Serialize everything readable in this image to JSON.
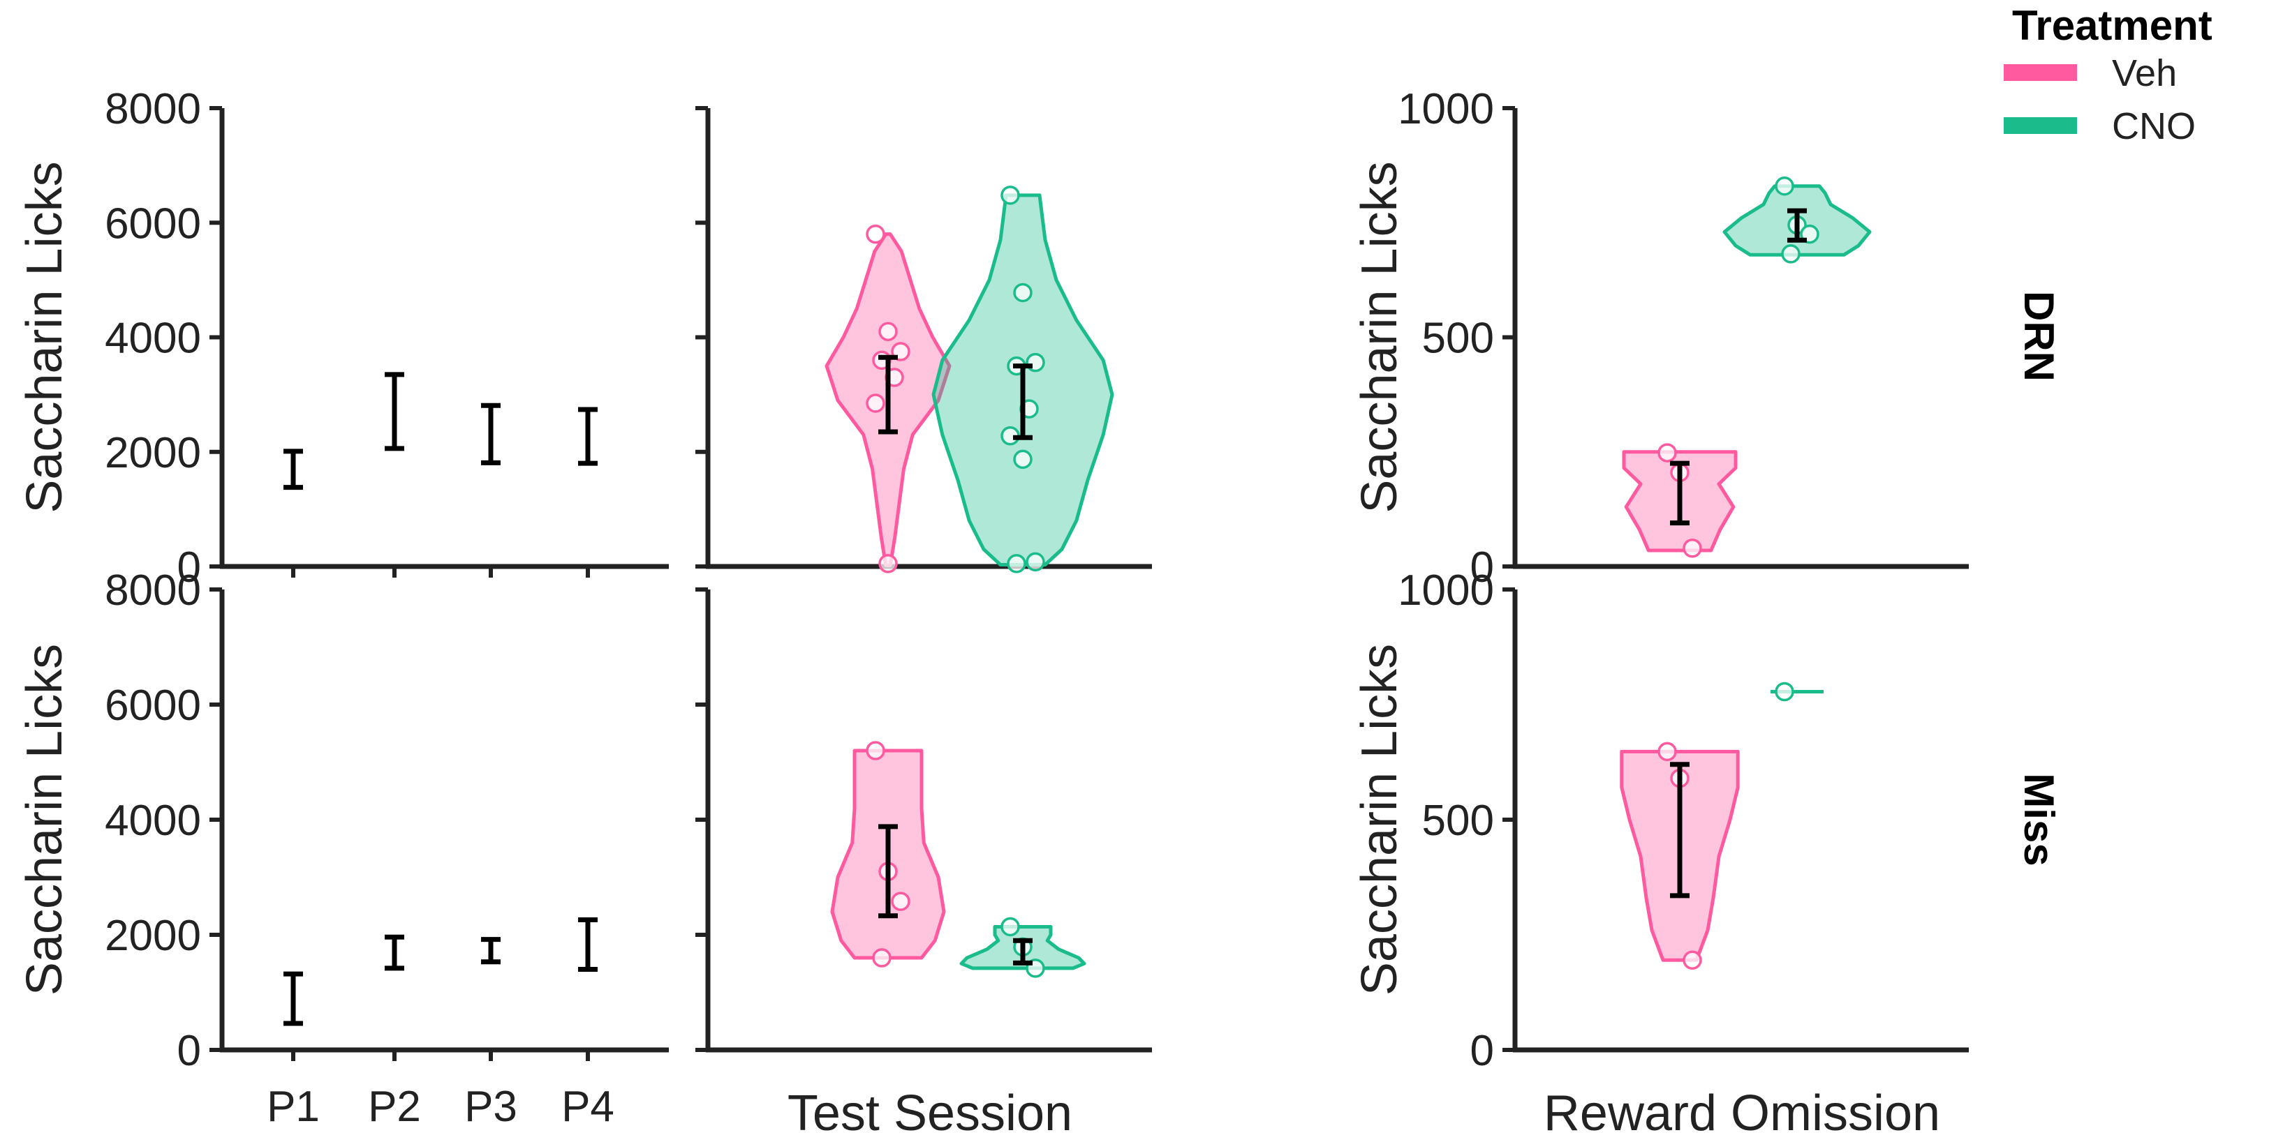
{
  "legend": {
    "title": "Treatment",
    "items": [
      {
        "label": "Veh",
        "color": "#FF5AA0"
      },
      {
        "label": "CNO",
        "color": "#1ABC8C"
      }
    ]
  },
  "chart_data": [
    {
      "type": "errorbar",
      "row": "DRN",
      "ylabel": "Saccharin Licks",
      "xlabel": "",
      "ylim": [
        0,
        8000
      ],
      "yticks": [
        0,
        2000,
        4000,
        6000,
        8000
      ],
      "categories": [
        "P1",
        "P2",
        "P3",
        "P4"
      ],
      "series": [
        {
          "low": [
            1380,
            2060,
            1810,
            1800
          ],
          "high": [
            2010,
            3350,
            2810,
            2740
          ]
        }
      ]
    },
    {
      "type": "violin",
      "row": "DRN",
      "xlabel": "",
      "ylim": [
        0,
        8000
      ],
      "categories": [
        "Test Session"
      ],
      "series": [
        {
          "treatment": "Veh",
          "color": "#FF5AA0",
          "points": [
            5800,
            4100,
            3750,
            3600,
            3300,
            2850,
            50
          ],
          "err": [
            2350,
            3650
          ],
          "shape": [
            [
              20,
              0.02
            ],
            [
              500,
              0.06
            ],
            [
              1100,
              0.1
            ],
            [
              1700,
              0.14
            ],
            [
              2300,
              0.22
            ],
            [
              2900,
              0.45
            ],
            [
              3500,
              0.55
            ],
            [
              4000,
              0.4
            ],
            [
              4500,
              0.28
            ],
            [
              5000,
              0.2
            ],
            [
              5500,
              0.12
            ],
            [
              5800,
              0.02
            ]
          ]
        },
        {
          "treatment": "CNO",
          "color": "#1ABC8C",
          "points": [
            6480,
            4780,
            3560,
            3500,
            2750,
            2280,
            1870,
            80,
            50
          ],
          "err": [
            2250,
            3500
          ],
          "shape": [
            [
              30,
              0.2
            ],
            [
              300,
              0.35
            ],
            [
              800,
              0.48
            ],
            [
              1500,
              0.58
            ],
            [
              2300,
              0.72
            ],
            [
              3000,
              0.8
            ],
            [
              3600,
              0.72
            ],
            [
              4300,
              0.48
            ],
            [
              5000,
              0.3
            ],
            [
              5700,
              0.2
            ],
            [
              6480,
              0.15
            ]
          ]
        }
      ]
    },
    {
      "type": "violin",
      "row": "DRN",
      "ylabel": "Saccharin Licks",
      "xlabel": "",
      "ylim": [
        0,
        1000
      ],
      "yticks": [
        0,
        500,
        1000
      ],
      "categories": [
        "Reward Omission"
      ],
      "series": [
        {
          "treatment": "Veh",
          "color": "#FF5AA0",
          "points": [
            248,
            205,
            40
          ],
          "err": [
            95,
            225
          ],
          "shape": [
            [
              35,
              0.28
            ],
            [
              80,
              0.36
            ],
            [
              130,
              0.48
            ],
            [
              180,
              0.35
            ],
            [
              215,
              0.5
            ],
            [
              250,
              0.5
            ]
          ]
        },
        {
          "treatment": "CNO",
          "color": "#1ABC8C",
          "points": [
            830,
            745,
            725,
            682
          ],
          "err": [
            712,
            776
          ],
          "shape": [
            [
              680,
              0.42
            ],
            [
              700,
              0.55
            ],
            [
              730,
              0.65
            ],
            [
              760,
              0.5
            ],
            [
              790,
              0.3
            ],
            [
              815,
              0.25
            ],
            [
              830,
              0.2
            ]
          ]
        }
      ]
    },
    {
      "type": "errorbar",
      "row": "Miss",
      "ylabel": "Saccharin Licks",
      "xlabel": "",
      "ylim": [
        0,
        8000
      ],
      "yticks": [
        0,
        2000,
        4000,
        6000,
        8000
      ],
      "categories": [
        "P1",
        "P2",
        "P3",
        "P4"
      ],
      "series": [
        {
          "low": [
            460,
            1420,
            1530,
            1400
          ],
          "high": [
            1320,
            1960,
            1920,
            2260
          ]
        }
      ]
    },
    {
      "type": "violin",
      "row": "Miss",
      "xlabel": "Test Session",
      "ylim": [
        0,
        8000
      ],
      "categories": [
        "Test Session"
      ],
      "series": [
        {
          "treatment": "Veh",
          "color": "#FF5AA0",
          "points": [
            5200,
            3100,
            2580,
            1600
          ],
          "err": [
            2330,
            3880
          ],
          "shape": [
            [
              1600,
              0.3
            ],
            [
              1900,
              0.42
            ],
            [
              2400,
              0.5
            ],
            [
              3000,
              0.45
            ],
            [
              3600,
              0.32
            ],
            [
              4200,
              0.3
            ],
            [
              4800,
              0.3
            ],
            [
              5200,
              0.3
            ]
          ]
        },
        {
          "treatment": "CNO",
          "color": "#1ABC8C",
          "points": [
            2140,
            1790,
            1420
          ],
          "err": [
            1510,
            1900
          ],
          "shape": [
            [
              1420,
              0.45
            ],
            [
              1500,
              0.55
            ],
            [
              1600,
              0.5
            ],
            [
              1750,
              0.32
            ],
            [
              1900,
              0.22
            ],
            [
              2000,
              0.25
            ],
            [
              2140,
              0.25
            ]
          ]
        }
      ]
    },
    {
      "type": "violin",
      "row": "Miss",
      "ylabel": "Saccharin Licks",
      "xlabel": "Reward Omission",
      "ylim": [
        0,
        1000
      ],
      "yticks": [
        0,
        500,
        1000
      ],
      "categories": [
        "Reward Omission"
      ],
      "series": [
        {
          "treatment": "Veh",
          "color": "#FF5AA0",
          "points": [
            648,
            590,
            195
          ],
          "err": [
            335,
            620
          ],
          "shape": [
            [
              195,
              0.15
            ],
            [
              260,
              0.25
            ],
            [
              330,
              0.3
            ],
            [
              420,
              0.35
            ],
            [
              500,
              0.45
            ],
            [
              570,
              0.52
            ],
            [
              648,
              0.52
            ]
          ]
        },
        {
          "treatment": "CNO",
          "color": "#1ABC8C",
          "points": [
            778
          ],
          "err": null,
          "shape": null
        }
      ]
    }
  ]
}
